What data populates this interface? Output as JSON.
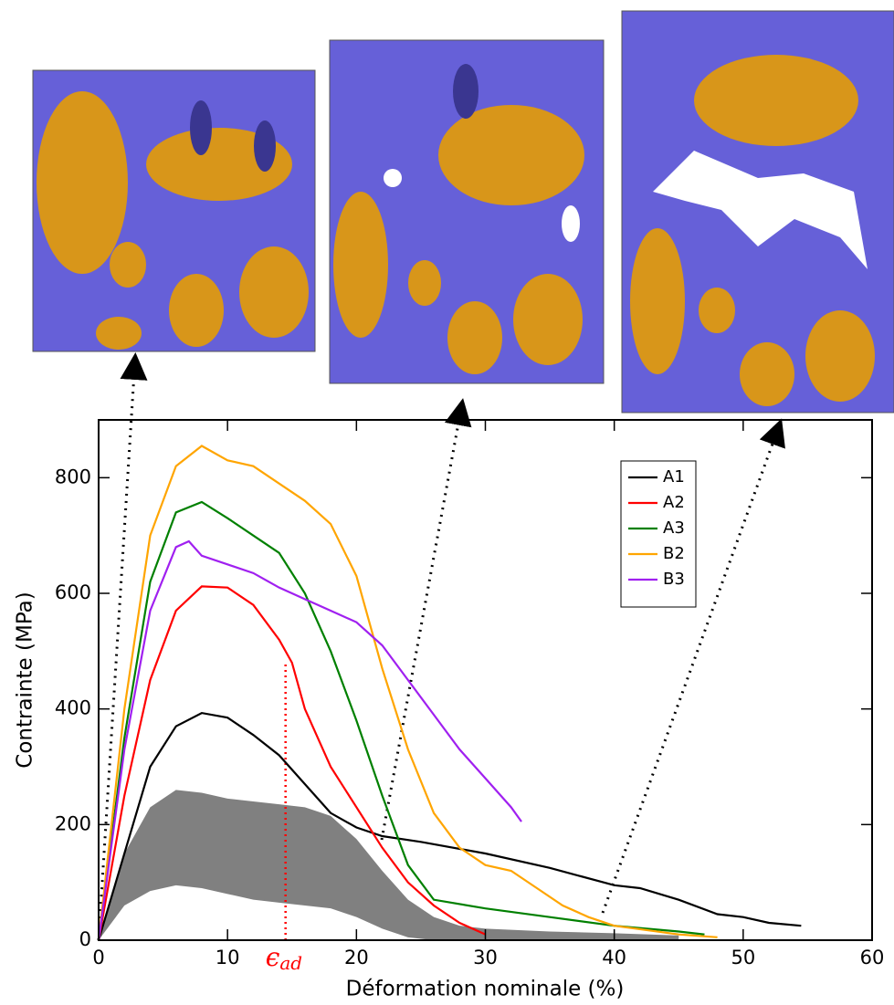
{
  "chart_data": {
    "type": "line",
    "xlabel": "Déformation nominale (%)",
    "ylabel": "Contrainte (MPa)",
    "xlim": [
      0,
      60
    ],
    "ylim": [
      0,
      900
    ],
    "xticks": [
      0,
      10,
      20,
      30,
      40,
      50,
      60
    ],
    "yticks": [
      0,
      200,
      400,
      600,
      800
    ],
    "legend": "upper right",
    "series": [
      {
        "name": "A1",
        "color": "#000000",
        "x": [
          0,
          2,
          4,
          6,
          8,
          10,
          12,
          14,
          16,
          18,
          20,
          22,
          25,
          30,
          35,
          40,
          42,
          45,
          48,
          50,
          52,
          54.5
        ],
        "values": [
          0,
          150,
          300,
          370,
          393,
          385,
          355,
          320,
          270,
          220,
          195,
          180,
          170,
          150,
          125,
          95,
          90,
          70,
          45,
          40,
          30,
          25
        ]
      },
      {
        "name": "A2",
        "color": "#ff0000",
        "x": [
          0,
          2,
          4,
          6,
          8,
          10,
          12,
          14,
          15,
          16,
          18,
          20,
          22,
          24,
          26,
          28,
          30
        ],
        "values": [
          0,
          250,
          450,
          570,
          612,
          610,
          580,
          520,
          480,
          400,
          300,
          230,
          160,
          100,
          60,
          30,
          10
        ]
      },
      {
        "name": "A3",
        "color": "#008000",
        "x": [
          0,
          2,
          4,
          6,
          8,
          10,
          12,
          14,
          16,
          18,
          20,
          22,
          24,
          26,
          30,
          35,
          40,
          45,
          47
        ],
        "values": [
          0,
          350,
          620,
          740,
          758,
          730,
          700,
          670,
          600,
          500,
          380,
          250,
          130,
          70,
          55,
          40,
          25,
          15,
          10
        ]
      },
      {
        "name": "B2",
        "color": "#ffa500",
        "x": [
          0,
          2,
          4,
          6,
          8,
          10,
          12,
          14,
          16,
          18,
          20,
          22,
          24,
          26,
          28,
          30,
          32,
          34,
          36,
          38,
          40,
          45,
          48
        ],
        "values": [
          0,
          400,
          700,
          820,
          855,
          830,
          820,
          790,
          760,
          720,
          630,
          470,
          330,
          220,
          160,
          130,
          120,
          90,
          60,
          40,
          25,
          10,
          5
        ]
      },
      {
        "name": "B3",
        "color": "#a020f0",
        "x": [
          0,
          2,
          4,
          6,
          7,
          8,
          10,
          12,
          14,
          16,
          18,
          20,
          22,
          24,
          26,
          28,
          30,
          32,
          32.8
        ],
        "values": [
          0,
          330,
          570,
          680,
          690,
          665,
          650,
          635,
          610,
          590,
          570,
          550,
          510,
          450,
          390,
          330,
          280,
          230,
          205
        ]
      }
    ],
    "band": {
      "color": "#808080",
      "x": [
        0,
        2,
        4,
        6,
        8,
        10,
        12,
        14,
        16,
        18,
        20,
        22,
        24,
        26,
        28,
        30,
        35,
        40,
        45
      ],
      "upper": [
        0,
        150,
        230,
        260,
        255,
        245,
        240,
        235,
        230,
        215,
        175,
        120,
        70,
        40,
        25,
        20,
        15,
        12,
        8
      ],
      "lower": [
        0,
        60,
        85,
        95,
        90,
        80,
        70,
        65,
        60,
        55,
        40,
        20,
        5,
        0,
        0,
        0,
        0,
        0,
        0
      ]
    },
    "annotation": {
      "text": "ϵ",
      "sub": "ad",
      "color": "#ff0000",
      "x": 14.5,
      "y": 480
    }
  }
}
